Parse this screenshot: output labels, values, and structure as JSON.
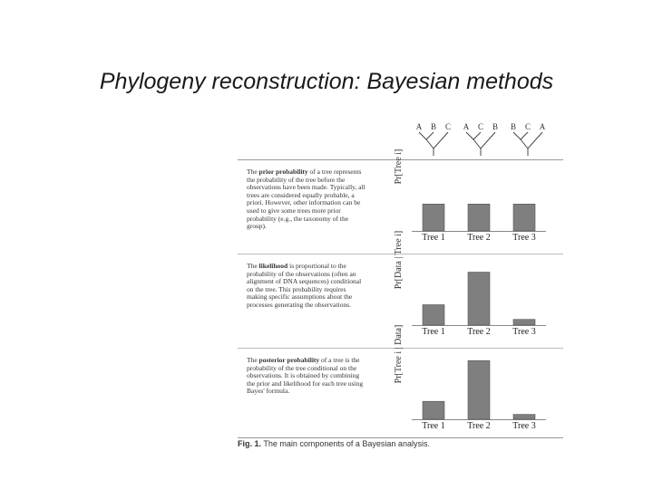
{
  "slide": {
    "title": "Phylogeny reconstruction: Bayesian methods"
  },
  "trees": [
    {
      "leaves": [
        "A",
        "B",
        "C"
      ]
    },
    {
      "leaves": [
        "A",
        "C",
        "B"
      ]
    },
    {
      "leaves": [
        "B",
        "C",
        "A"
      ]
    }
  ],
  "panels": [
    {
      "term": "prior probability",
      "before": "The ",
      "after": " of a tree represents the probability of the tree before the observations have been made. Typically, all trees are considered equally probable, a priori. However, other information can be used to give some trees more prior probability (e.g., the taxonomy of the group).",
      "ylabel": "Pr[Tree i]"
    },
    {
      "term": "likelihood",
      "before": "The ",
      "after": " is proportional to the probability of the observations (often an alignment of DNA sequences) conditional on the tree. This probability requires making specific assumptions about the processes generating the observations.",
      "ylabel": "Pr[Data | Tree i]"
    },
    {
      "term": "posterior probability",
      "before": "The ",
      "after": " of a tree is the probability of the tree conditional on the observations. It is obtained by combining the prior and likelihood for each tree using Bayes' formula.",
      "ylabel": "Pr[Tree i | Data]"
    }
  ],
  "chart_data": [
    {
      "type": "bar",
      "categories": [
        "Tree 1",
        "Tree 2",
        "Tree 3"
      ],
      "values": [
        0.33,
        0.33,
        0.33
      ],
      "ylim": [
        0,
        0.8
      ],
      "ylabel": "Pr[Tree i]"
    },
    {
      "type": "bar",
      "categories": [
        "Tree 1",
        "Tree 2",
        "Tree 3"
      ],
      "values": [
        0.25,
        0.65,
        0.07
      ],
      "ylim": [
        0,
        0.8
      ],
      "ylabel": "Pr[Data | Tree i]"
    },
    {
      "type": "bar",
      "categories": [
        "Tree 1",
        "Tree 2",
        "Tree 3"
      ],
      "values": [
        0.22,
        0.72,
        0.06
      ],
      "ylim": [
        0,
        0.8
      ],
      "ylabel": "Pr[Tree i | Data]"
    }
  ],
  "caption": {
    "label": "Fig. 1.",
    "text": " The main components of a Bayesian analysis."
  },
  "colors": {
    "bar": "#7f7f7f",
    "bar_edge": "#555555"
  }
}
